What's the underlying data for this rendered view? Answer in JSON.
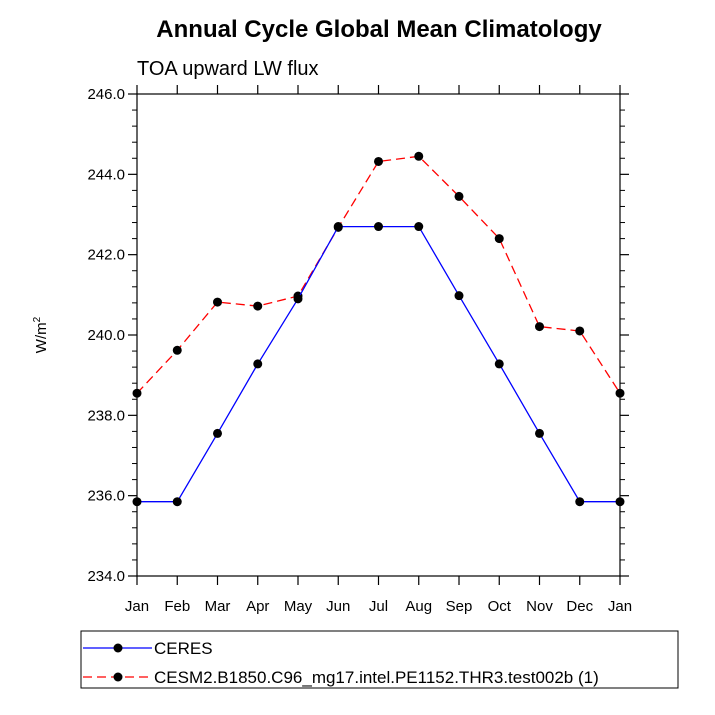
{
  "chart_data": {
    "type": "line",
    "title": "Annual Cycle Global Mean Climatology",
    "subtitle": "TOA upward LW flux",
    "ylabel": "W/m",
    "ylabel_sup": "2",
    "xlabel": "",
    "categories": [
      "Jan",
      "Feb",
      "Mar",
      "Apr",
      "May",
      "Jun",
      "Jul",
      "Aug",
      "Sep",
      "Oct",
      "Nov",
      "Dec",
      "Jan"
    ],
    "ylim": [
      234.0,
      246.0
    ],
    "yticks": [
      234.0,
      236.0,
      238.0,
      240.0,
      242.0,
      244.0,
      246.0
    ],
    "ytick_labels": [
      "234.0",
      "236.0",
      "238.0",
      "240.0",
      "242.0",
      "244.0",
      "246.0"
    ],
    "grid": false,
    "legend_position": "bottom",
    "series": [
      {
        "name": "CERES",
        "color": "#0000ff",
        "dash": "solid",
        "marker": "circle",
        "values": [
          235.85,
          235.85,
          237.55,
          239.28,
          240.9,
          242.7,
          242.7,
          242.7,
          240.98,
          239.28,
          237.55,
          235.85,
          235.85
        ]
      },
      {
        "name": "CESM2.B1850.C96_mg17.intel.PE1152.THR3.test002b (1)",
        "color": "#ff0000",
        "dash": "dashed",
        "marker": "circle",
        "values": [
          238.55,
          239.62,
          240.82,
          240.72,
          240.97,
          242.68,
          244.32,
          244.45,
          243.45,
          242.4,
          240.21,
          240.1,
          238.55
        ]
      }
    ]
  }
}
